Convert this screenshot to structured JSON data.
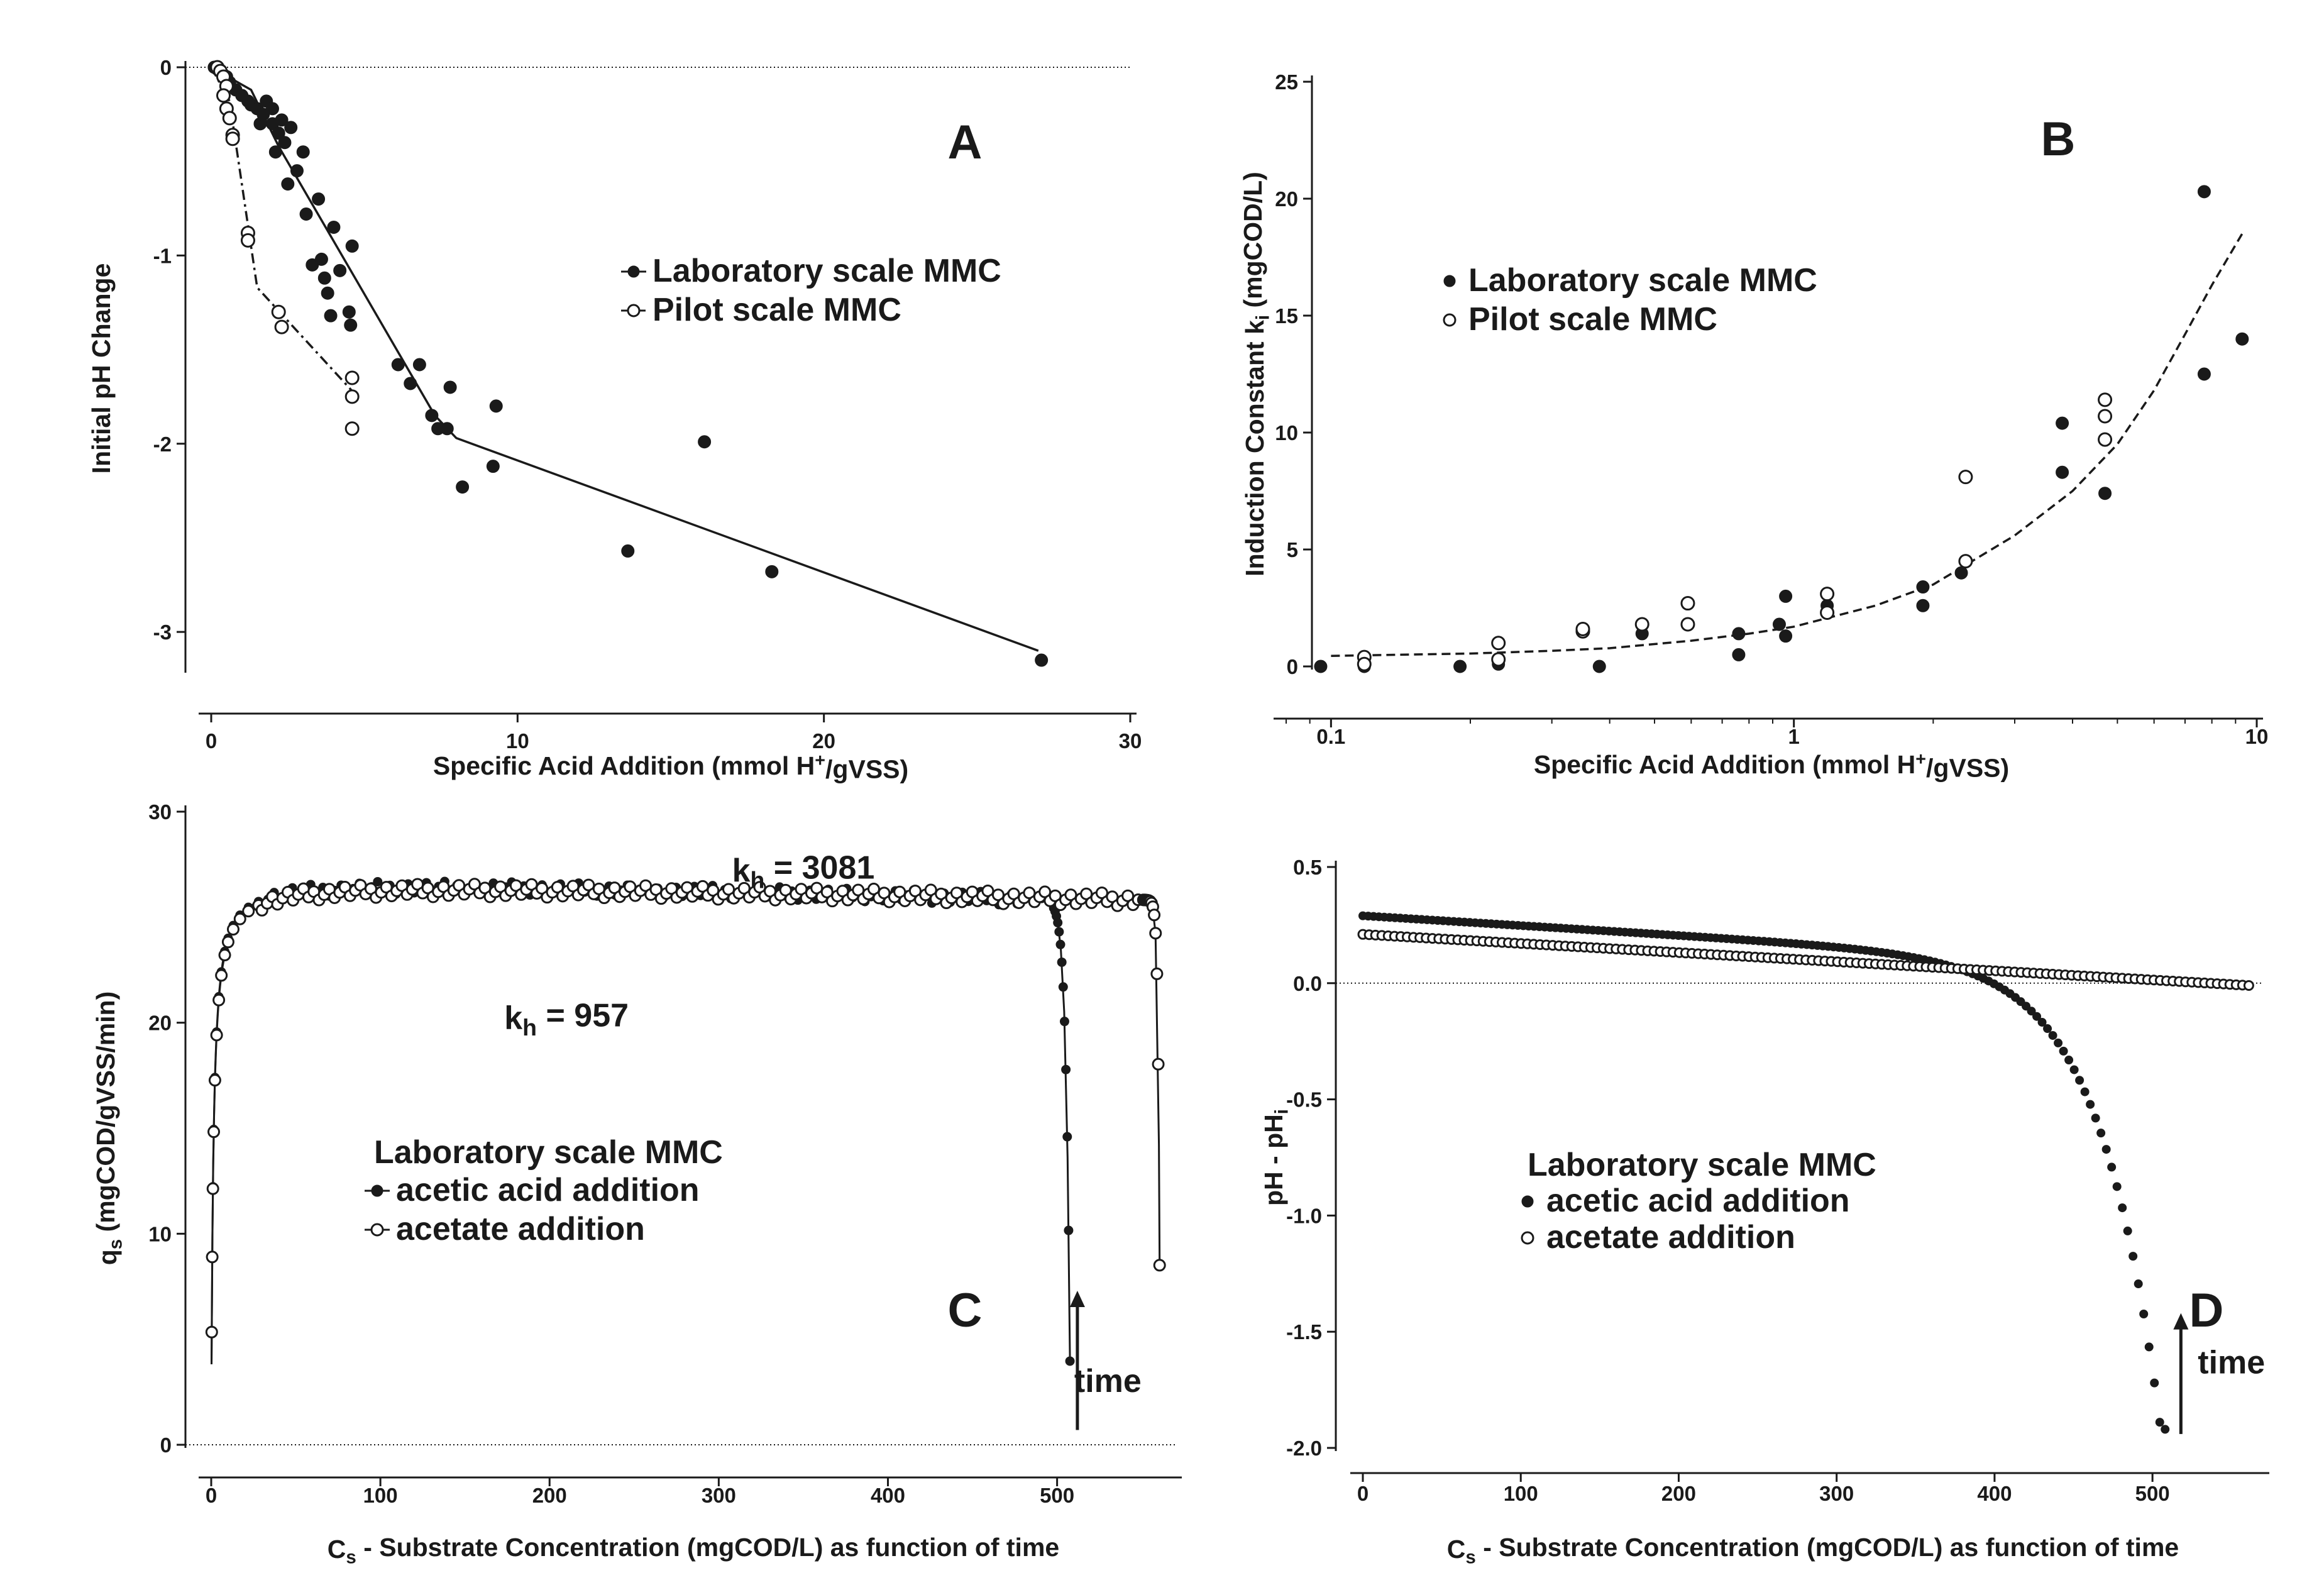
{
  "figure": {
    "colors": {
      "ink": "#1a1a1a",
      "background": "#ffffff"
    }
  },
  "chart_data": [
    {
      "id": "A",
      "type": "scatter",
      "panel_label": "A",
      "xlabel": "Specific Acid Addition (mmol H+/gVSS)",
      "xlabel_parts": {
        "pre": "Specific Acid Addition (mmol H",
        "sup": "+",
        "post": "/gVSS)"
      },
      "ylabel": "Initial pH Change",
      "xlim": [
        0,
        30
      ],
      "ylim": [
        -3.2,
        0
      ],
      "xticks": [
        0,
        10,
        20,
        30
      ],
      "yticks": [
        0,
        -1,
        -2,
        -3
      ],
      "xtick_labels": [
        "0",
        "10",
        "20",
        "30"
      ],
      "ytick_labels": [
        "0",
        "-1",
        "-2",
        "-3"
      ],
      "reference_line_y": 0,
      "legend": [
        {
          "label": "Laboratory scale MMC",
          "marker": "filled",
          "line": "solid"
        },
        {
          "label": "Pilot scale MMC",
          "marker": "open",
          "line": "dashdot"
        }
      ],
      "series": [
        {
          "name": "Laboratory scale MMC",
          "marker": "filled",
          "points": [
            [
              0.1,
              0
            ],
            [
              0.2,
              -0.01
            ],
            [
              0.3,
              -0.02
            ],
            [
              0.4,
              -0.04
            ],
            [
              0.5,
              -0.05
            ],
            [
              0.6,
              -0.08
            ],
            [
              0.8,
              -0.12
            ],
            [
              1.0,
              -0.15
            ],
            [
              1.2,
              -0.18
            ],
            [
              1.3,
              -0.2
            ],
            [
              1.5,
              -0.22
            ],
            [
              1.6,
              -0.3
            ],
            [
              1.7,
              -0.25
            ],
            [
              1.8,
              -0.18
            ],
            [
              2.0,
              -0.22
            ],
            [
              2.0,
              -0.3
            ],
            [
              2.1,
              -0.45
            ],
            [
              2.2,
              -0.35
            ],
            [
              2.3,
              -0.28
            ],
            [
              2.4,
              -0.4
            ],
            [
              2.5,
              -0.62
            ],
            [
              2.6,
              -0.32
            ],
            [
              2.8,
              -0.55
            ],
            [
              3.0,
              -0.45
            ],
            [
              3.1,
              -0.78
            ],
            [
              3.3,
              -1.05
            ],
            [
              3.5,
              -0.7
            ],
            [
              3.6,
              -1.02
            ],
            [
              3.7,
              -1.12
            ],
            [
              3.8,
              -1.2
            ],
            [
              3.9,
              -1.32
            ],
            [
              4.0,
              -0.85
            ],
            [
              4.2,
              -1.08
            ],
            [
              4.5,
              -1.3
            ],
            [
              4.55,
              -1.37
            ],
            [
              4.6,
              -0.95
            ],
            [
              6.1,
              -1.58
            ],
            [
              6.5,
              -1.68
            ],
            [
              6.8,
              -1.58
            ],
            [
              7.2,
              -1.85
            ],
            [
              7.4,
              -1.92
            ],
            [
              7.7,
              -1.92
            ],
            [
              7.8,
              -1.7
            ],
            [
              8.2,
              -2.23
            ],
            [
              9.2,
              -2.12
            ],
            [
              9.3,
              -1.8
            ],
            [
              13.6,
              -2.57
            ],
            [
              16.1,
              -1.99
            ],
            [
              18.3,
              -2.68
            ],
            [
              27.1,
              -3.15
            ]
          ]
        },
        {
          "name": "Pilot scale MMC",
          "marker": "open",
          "points": [
            [
              0.2,
              0
            ],
            [
              0.3,
              -0.02
            ],
            [
              0.4,
              -0.05
            ],
            [
              0.5,
              -0.1
            ],
            [
              0.4,
              -0.15
            ],
            [
              0.5,
              -0.22
            ],
            [
              0.6,
              -0.27
            ],
            [
              0.7,
              -0.36
            ],
            [
              0.7,
              -0.38
            ],
            [
              1.2,
              -0.88
            ],
            [
              1.2,
              -0.92
            ],
            [
              2.2,
              -1.3
            ],
            [
              2.3,
              -1.38
            ],
            [
              4.6,
              -1.65
            ],
            [
              4.6,
              -1.75
            ],
            [
              4.6,
              -1.92
            ]
          ]
        }
      ],
      "fits": [
        {
          "name": "Laboratory scale MMC fit",
          "style": "solid",
          "points": [
            [
              0,
              0
            ],
            [
              1.3,
              -0.12
            ],
            [
              2.2,
              -0.42
            ],
            [
              7.3,
              -1.85
            ],
            [
              8,
              -1.97
            ],
            [
              27,
              -3.1
            ]
          ]
        },
        {
          "name": "Pilot scale MMC fit",
          "style": "dashdot",
          "points": [
            [
              0,
              0
            ],
            [
              0.6,
              -0.18
            ],
            [
              1.5,
              -1.17
            ],
            [
              4.6,
              -1.72
            ]
          ]
        }
      ]
    },
    {
      "id": "B",
      "type": "scatter",
      "panel_label": "B",
      "xscale": "log",
      "xlabel": "Specific Acid Addition (mmol H+/gVSS)",
      "xlabel_parts": {
        "pre": "Specific Acid Addition (mmol H",
        "sup": "+",
        "post": "/gVSS)"
      },
      "ylabel": "Induction Constant ki (mgCOD/L)",
      "ylabel_parts": {
        "pre": "Induction Constant k",
        "sub": "i",
        "post": " (mgCOD/L)"
      },
      "xlim": [
        0.08,
        10
      ],
      "ylim": [
        0,
        25
      ],
      "xticks": [
        0.1,
        1,
        10
      ],
      "yticks": [
        0,
        5,
        10,
        15,
        20,
        25
      ],
      "xtick_labels": [
        "0.1",
        "1",
        "10"
      ],
      "ytick_labels": [
        "0",
        "5",
        "10",
        "15",
        "20",
        "25"
      ],
      "legend": [
        {
          "label": "Laboratory scale MMC",
          "marker": "filled"
        },
        {
          "label": "Pilot scale MMC",
          "marker": "open"
        }
      ],
      "series": [
        {
          "name": "Laboratory scale MMC",
          "marker": "filled",
          "points": [
            [
              0.095,
              0
            ],
            [
              0.118,
              0
            ],
            [
              0.19,
              0
            ],
            [
              0.23,
              0.1
            ],
            [
              0.38,
              0
            ],
            [
              0.47,
              1.4
            ],
            [
              0.76,
              0.5
            ],
            [
              0.76,
              1.4
            ],
            [
              0.93,
              1.8
            ],
            [
              0.96,
              1.3
            ],
            [
              0.96,
              3.0
            ],
            [
              1.18,
              2.6
            ],
            [
              1.9,
              2.6
            ],
            [
              1.9,
              3.4
            ],
            [
              2.3,
              4.0
            ],
            [
              3.8,
              10.4
            ],
            [
              3.8,
              8.3
            ],
            [
              4.7,
              7.4
            ],
            [
              7.7,
              20.3
            ],
            [
              7.7,
              12.5
            ],
            [
              9.3,
              14.0
            ]
          ]
        },
        {
          "name": "Pilot scale MMC",
          "marker": "open",
          "points": [
            [
              0.118,
              0.4
            ],
            [
              0.118,
              0.1
            ],
            [
              0.23,
              1.0
            ],
            [
              0.23,
              0.3
            ],
            [
              0.35,
              1.5
            ],
            [
              0.35,
              1.6
            ],
            [
              0.47,
              1.8
            ],
            [
              0.59,
              2.7
            ],
            [
              0.59,
              1.8
            ],
            [
              1.18,
              3.1
            ],
            [
              1.18,
              2.3
            ],
            [
              2.35,
              8.1
            ],
            [
              2.35,
              4.5
            ],
            [
              4.7,
              11.4
            ],
            [
              4.7,
              10.7
            ],
            [
              4.7,
              9.7
            ]
          ]
        }
      ],
      "fits": [
        {
          "name": "exponential fit",
          "style": "dashed",
          "points": [
            [
              0.1,
              0.45
            ],
            [
              0.2,
              0.55
            ],
            [
              0.3,
              0.67
            ],
            [
              0.4,
              0.78
            ],
            [
              0.6,
              1.1
            ],
            [
              0.8,
              1.4
            ],
            [
              1,
              1.7
            ],
            [
              1.5,
              2.6
            ],
            [
              2,
              3.5
            ],
            [
              3,
              5.6
            ],
            [
              4,
              7.5
            ],
            [
              5,
              9.5
            ],
            [
              6,
              11.8
            ],
            [
              7,
              14.2
            ],
            [
              8,
              16.3
            ],
            [
              9.3,
              18.5
            ]
          ]
        }
      ]
    },
    {
      "id": "C",
      "type": "scatter",
      "panel_label": "C",
      "xlabel": "Cs - Substrate Concentration (mgCOD/L) as function of time",
      "xlabel_parts": {
        "pre": "C",
        "sub": "s",
        "post": " - Substrate Concentration (mgCOD/L) as function of time"
      },
      "ylabel": "qs (mgCOD/gVSS/min)",
      "ylabel_parts": {
        "pre": "q",
        "sub": "s",
        "post": " (mgCOD/gVSS/min)"
      },
      "xlim": [
        0,
        570
      ],
      "ylim": [
        0,
        30
      ],
      "xticks": [
        0,
        100,
        200,
        300,
        400,
        500
      ],
      "yticks": [
        0,
        10,
        20,
        30
      ],
      "xtick_labels": [
        "0",
        "100",
        "200",
        "300",
        "400",
        "500"
      ],
      "ytick_labels": [
        "0",
        "10",
        "20",
        "30"
      ],
      "reference_line_y": 0,
      "legend_title": "Laboratory scale MMC",
      "legend": [
        {
          "label": "acetic acid addition",
          "marker": "filled",
          "line": "solid"
        },
        {
          "label": "acetate addition",
          "marker": "open",
          "line": "solid"
        }
      ],
      "annotations": [
        {
          "text": "kh = 3081",
          "pre": "k",
          "sub": "h",
          "post": " = 3081",
          "x": 350,
          "y": 26.7
        },
        {
          "text": "kh = 957",
          "pre": "k",
          "sub": "h",
          "post": " = 957",
          "x": 210,
          "y": 19.7
        },
        {
          "text": "time",
          "x": 530,
          "y": 2.5
        }
      ],
      "arrow": {
        "from": [
          512,
          0.7
        ],
        "to": [
          512,
          7.3
        ]
      },
      "series": [
        {
          "name": "acetic acid addition",
          "marker": "filled",
          "kh": 957,
          "model": {
            "vmax": 26.9,
            "k_sat": 1.2,
            "cs_end": 508,
            "slope": 0.0075,
            "tail": 2.4
          },
          "n": 130
        },
        {
          "name": "acetate addition",
          "marker": "open",
          "kh": 3081,
          "model": {
            "vmax": 26.7,
            "k_sat": 1.2,
            "cs_end": 561,
            "slope": 0.0056,
            "tail": 1.0
          },
          "n": 170
        }
      ]
    },
    {
      "id": "D",
      "type": "scatter",
      "panel_label": "D",
      "xlabel": "Cs - Substrate Concentration (mgCOD/L) as function of time",
      "xlabel_parts": {
        "pre": "C",
        "sub": "s",
        "post": " - Substrate Concentration (mgCOD/L) as function of time"
      },
      "ylabel": "pH - pHi",
      "ylabel_parts": {
        "pre": "pH - pH",
        "sub": "i",
        "post": ""
      },
      "xlim": [
        0,
        570
      ],
      "ylim": [
        -2.0,
        0.5
      ],
      "xticks": [
        0,
        100,
        200,
        300,
        400,
        500
      ],
      "yticks": [
        0.5,
        0,
        -0.5,
        -1.0,
        -1.5,
        -2.0
      ],
      "xtick_labels": [
        "0",
        "100",
        "200",
        "300",
        "400",
        "500"
      ],
      "ytick_labels": [
        "0.5",
        "0.0",
        "-0.5",
        "-1.0",
        "-1.5",
        "-2.0"
      ],
      "reference_line_y": 0,
      "legend_title": "Laboratory scale MMC",
      "legend": [
        {
          "label": "acetic acid addition",
          "marker": "filled"
        },
        {
          "label": "acetate addition",
          "marker": "open"
        }
      ],
      "annotations": [
        {
          "text": "time",
          "x": 550,
          "y": -1.68
        }
      ],
      "arrow": {
        "from": [
          518,
          -1.94
        ],
        "to": [
          518,
          -1.42
        ]
      },
      "series": [
        {
          "name": "acetic acid addition",
          "marker": "filled",
          "model": {
            "start": 0.29,
            "end": -1.92,
            "cs_end": 508,
            "linear": 0.00052,
            "tail": 3.3
          },
          "n": 150
        },
        {
          "name": "acetate addition",
          "marker": "open",
          "model": {
            "start": 0.21,
            "end": -0.01,
            "cs_end": 561
          },
          "n": 140
        }
      ]
    }
  ]
}
